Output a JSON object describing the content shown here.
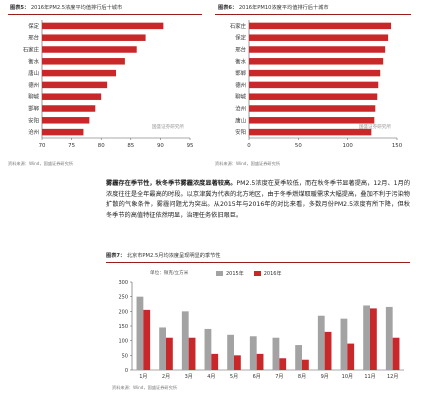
{
  "top_left": {
    "figure_title": "图表5：",
    "figure_subtitle": "2016年PM2.5浓度平均值排行后十城市",
    "source": "资料来源：Wind，国盛证券研究所",
    "watermark": "国盛证券研究所"
  },
  "top_right": {
    "figure_title": "图表6：",
    "figure_subtitle": "2016年PM10浓度平均值排行后十城市",
    "source": "资料来源：Wind，国盛证券研究所",
    "watermark": "国盛证券研究所"
  },
  "body": {
    "lead": "雾霾存在季节性，秋冬季节雾霾浓度显著较高。",
    "text": "PM2.5浓度在夏季较低，而在秋冬季节显著提高，12月、1月的浓度往往是全年最高的时段。以京津冀为代表的北方地区，由于冬季燃煤取暖需求大幅提高，叠加不利于污染物扩散的气象条件，雾霾问题尤为突出。从2015年与2016年的对比来看，多数月份PM2.5浓度有所下降，但秋冬季节的高值特征依然明显，治理任务依旧艰巨。"
  },
  "bottom": {
    "figure_title": "图表7：",
    "figure_subtitle": "北京市PM2.5月均浓度呈现明显的季节性",
    "unit": "单位：微克/立方米",
    "source": "资料来源：Wind，国盛证券研究所"
  },
  "colors": {
    "accent": "#9a1c1c",
    "bar_red": "#c8282a",
    "bar_gray": "#a3a3a3"
  },
  "chart_data": [
    {
      "type": "bar",
      "orientation": "horizontal",
      "categories": [
        "保定",
        "邢台",
        "石家庄",
        "衡水",
        "唐山",
        "德州",
        "聊城",
        "邯郸",
        "安阳",
        "沧州"
      ],
      "values": [
        90.5,
        87.5,
        86,
        84,
        82.5,
        81,
        80,
        79,
        78,
        77
      ],
      "xlim": [
        70,
        95
      ],
      "xticks": [
        70,
        75,
        80,
        85,
        90,
        95
      ],
      "grid": false
    },
    {
      "type": "bar",
      "orientation": "horizontal",
      "categories": [
        "石家庄",
        "保定",
        "邢台",
        "衡水",
        "邯郸",
        "德州",
        "聊城",
        "沧州",
        "唐山",
        "安阳"
      ],
      "values": [
        144,
        141,
        138,
        136,
        133,
        131,
        130,
        128,
        127,
        124
      ],
      "xlim": [
        0,
        150
      ],
      "xticks": [
        0,
        50,
        100,
        150
      ],
      "grid": false
    },
    {
      "type": "bar",
      "orientation": "vertical",
      "categories": [
        "1月",
        "2月",
        "3月",
        "4月",
        "5月",
        "6月",
        "7月",
        "8月",
        "9月",
        "10月",
        "11月",
        "12月"
      ],
      "series": [
        {
          "name": "2015年",
          "values": [
            250,
            145,
            200,
            140,
            120,
            115,
            110,
            85,
            185,
            175,
            220,
            215
          ],
          "color": "#a3a3a3"
        },
        {
          "name": "2016年",
          "values": [
            205,
            110,
            110,
            55,
            50,
            55,
            40,
            35,
            130,
            90,
            210,
            110
          ],
          "color": "#c8282a"
        }
      ],
      "ylim": [
        0,
        300
      ],
      "yticks": [
        0,
        50,
        100,
        150,
        200,
        250,
        300
      ],
      "legend": "top-center",
      "grid": false
    }
  ]
}
